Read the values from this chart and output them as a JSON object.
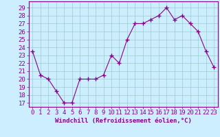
{
  "x": [
    0,
    1,
    2,
    3,
    4,
    5,
    6,
    7,
    8,
    9,
    10,
    11,
    12,
    13,
    14,
    15,
    16,
    17,
    18,
    19,
    20,
    21,
    22,
    23
  ],
  "y": [
    23.5,
    20.5,
    20.0,
    18.5,
    17.0,
    17.0,
    20.0,
    20.0,
    20.0,
    20.5,
    23.0,
    22.0,
    25.0,
    27.0,
    27.0,
    27.5,
    28.0,
    29.0,
    27.5,
    28.0,
    27.0,
    26.0,
    23.5,
    21.5
  ],
  "xlabel": "Windchill (Refroidissement éolien,°C)",
  "ylabel_ticks": [
    17,
    18,
    19,
    20,
    21,
    22,
    23,
    24,
    25,
    26,
    27,
    28,
    29
  ],
  "ylim": [
    16.5,
    29.8
  ],
  "xlim": [
    -0.5,
    23.5
  ],
  "line_color": "#880088",
  "marker_color": "#880088",
  "bg_color": "#cceeff",
  "grid_color": "#99cccc",
  "border_color": "#880088",
  "xlabel_fontsize": 6.5,
  "tick_fontsize": 6.5
}
